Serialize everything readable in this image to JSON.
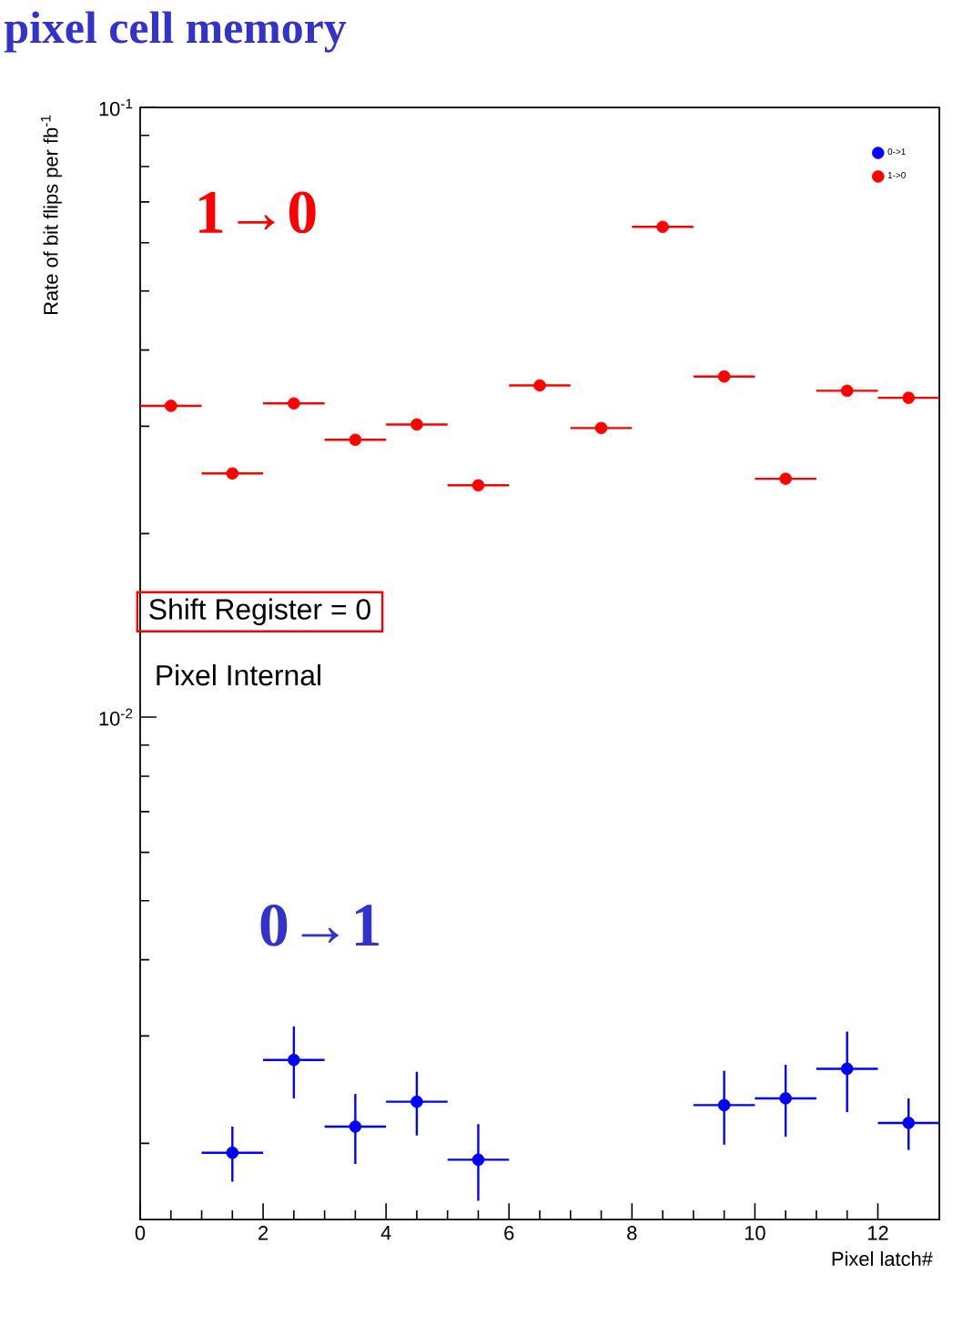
{
  "chart_data": {
    "type": "scatter",
    "title": "pixel cell memory",
    "xlabel": "Pixel latch#",
    "ylabel": "Rate of bit flips per fb$^{-1}$",
    "annotations": [
      "1→0",
      "0→1",
      "Shift Register = 0",
      "Pixel Internal"
    ],
    "x": [
      0.5,
      1.5,
      2.5,
      3.5,
      4.5,
      5.5,
      6.5,
      7.5,
      8.5,
      9.5,
      10.5,
      11.5,
      12.5
    ],
    "series": [
      {
        "name": "0->1",
        "color": "#0000ff",
        "values": [
          null,
          0.00193,
          0.00274,
          0.00213,
          0.00234,
          0.00188,
          null,
          null,
          null,
          0.00231,
          0.00237,
          0.00265,
          0.00216
        ],
        "errors": [
          null,
          0.0002,
          0.00037,
          0.00028,
          0.00028,
          0.00027,
          null,
          null,
          null,
          0.00032,
          0.00032,
          0.0004,
          0.00021
        ],
        "xerrors": [
          null,
          0.5,
          0.5,
          0.5,
          0.5,
          0.5,
          null,
          null,
          null,
          0.5,
          0.5,
          0.5,
          0.5
        ]
      },
      {
        "name": "1->0",
        "color": "#ff0000",
        "values": [
          0.0324,
          0.0251,
          0.0327,
          0.0285,
          0.0302,
          0.024,
          0.035,
          0.0298,
          0.0637,
          0.0362,
          0.0246,
          0.0343,
          0.0334
        ],
        "xerrors": [
          0.5,
          0.5,
          0.5,
          0.5,
          0.5,
          0.5,
          0.5,
          0.5,
          0.5,
          0.5,
          0.5,
          0.5,
          0.5
        ]
      }
    ],
    "xlim": [
      0,
      13
    ],
    "ylim": [
      0.0015,
      0.1
    ],
    "xticks": [
      0,
      2,
      4,
      6,
      8,
      10,
      12
    ],
    "yticks": [
      {
        "value": 0.01,
        "label": "10$^{-2}$"
      },
      {
        "value": 0.1,
        "label": "10$^{-1}$"
      }
    ],
    "log": "y",
    "marker": "circle",
    "legend": "top right"
  }
}
